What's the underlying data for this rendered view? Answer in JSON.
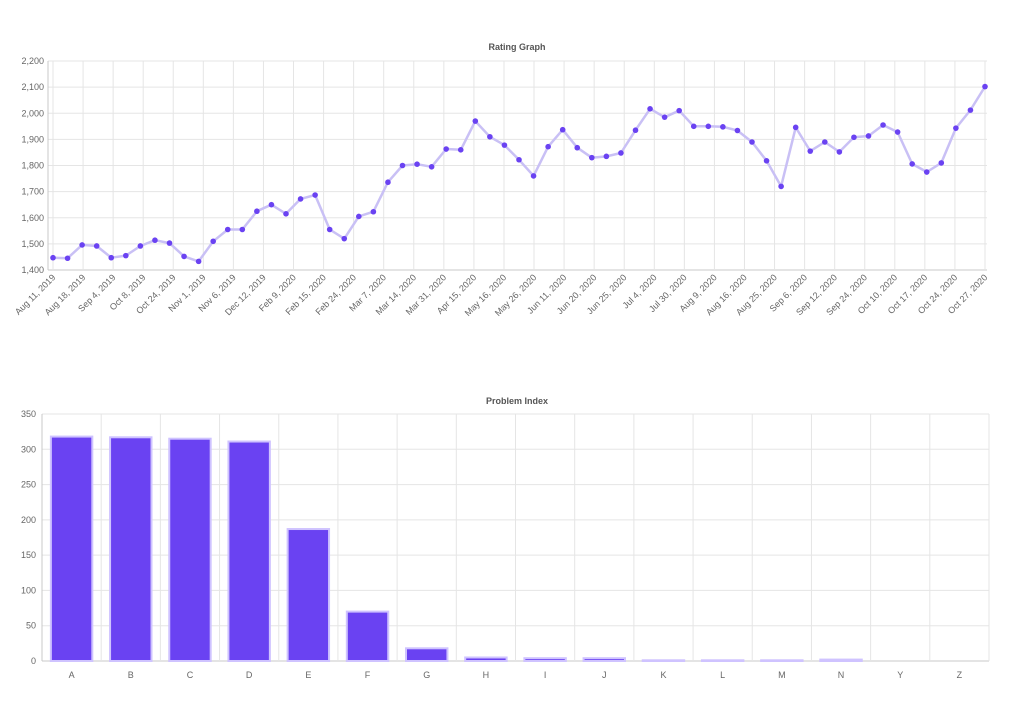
{
  "chart_data": [
    {
      "type": "line",
      "title": "Rating Graph",
      "ylim": [
        1400,
        2200
      ],
      "yticks": [
        "1,400",
        "1,500",
        "1,600",
        "1,700",
        "1,800",
        "1,900",
        "2,000",
        "2,100",
        "2,200"
      ],
      "x_tick_labels": [
        "Aug 11, 2019",
        "Aug 18, 2019",
        "Sep 4, 2019",
        "Oct 8, 2019",
        "Oct 24, 2019",
        "Nov 1, 2019",
        "Nov 6, 2019",
        "Dec 12, 2019",
        "Feb 9, 2020",
        "Feb 15, 2020",
        "Feb 24, 2020",
        "Mar 7, 2020",
        "Mar 14, 2020",
        "Mar 31, 2020",
        "Apr 15, 2020",
        "May 16, 2020",
        "May 26, 2020",
        "Jun 11, 2020",
        "Jun 20, 2020",
        "Jun 25, 2020",
        "Jul 4, 2020",
        "Jul 30, 2020",
        "Aug 9, 2020",
        "Aug 16, 2020",
        "Aug 25, 2020",
        "Sep 6, 2020",
        "Sep 12, 2020",
        "Sep 24, 2020",
        "Oct 10, 2020",
        "Oct 17, 2020",
        "Oct 24, 2020",
        "Oct 27, 2020"
      ],
      "grid": true,
      "colors": {
        "line": "#c9c0f5",
        "point": "#6a42f2"
      },
      "series": [
        {
          "values": [
            1447,
            1445,
            1496,
            1492,
            1447,
            1455,
            1492,
            1514,
            1503,
            1452,
            1433,
            1510,
            1555,
            1555,
            1625,
            1650,
            1615,
            1672,
            1687,
            1555,
            1520,
            1605,
            1623,
            1736,
            1800,
            1805,
            1795,
            1863,
            1860,
            1970,
            1910,
            1878,
            1822,
            1760,
            1872,
            1937,
            1868,
            1830,
            1835,
            1848,
            1935,
            2017,
            1985,
            2010,
            1950,
            1950,
            1948,
            1934,
            1890,
            1818,
            1720,
            1946,
            1855,
            1890,
            1852,
            1908,
            1913,
            1955,
            1928,
            1806,
            1775,
            1810,
            1943,
            2012,
            2102
          ]
        }
      ]
    },
    {
      "type": "bar",
      "title": "Problem Index",
      "categories": [
        "A",
        "B",
        "C",
        "D",
        "E",
        "F",
        "G",
        "H",
        "I",
        "J",
        "K",
        "L",
        "M",
        "N",
        "Y",
        "Z"
      ],
      "values": [
        318,
        317,
        315,
        311,
        187,
        70,
        18,
        5,
        4,
        4,
        1,
        1,
        1,
        2,
        0,
        0
      ],
      "ylim": [
        0,
        350
      ],
      "yticks": [
        "0",
        "50",
        "100",
        "150",
        "200",
        "250",
        "300",
        "350"
      ],
      "grid": true,
      "colors": {
        "bar": "#6a42f2",
        "bar_border": "#cfc3ff"
      }
    }
  ]
}
